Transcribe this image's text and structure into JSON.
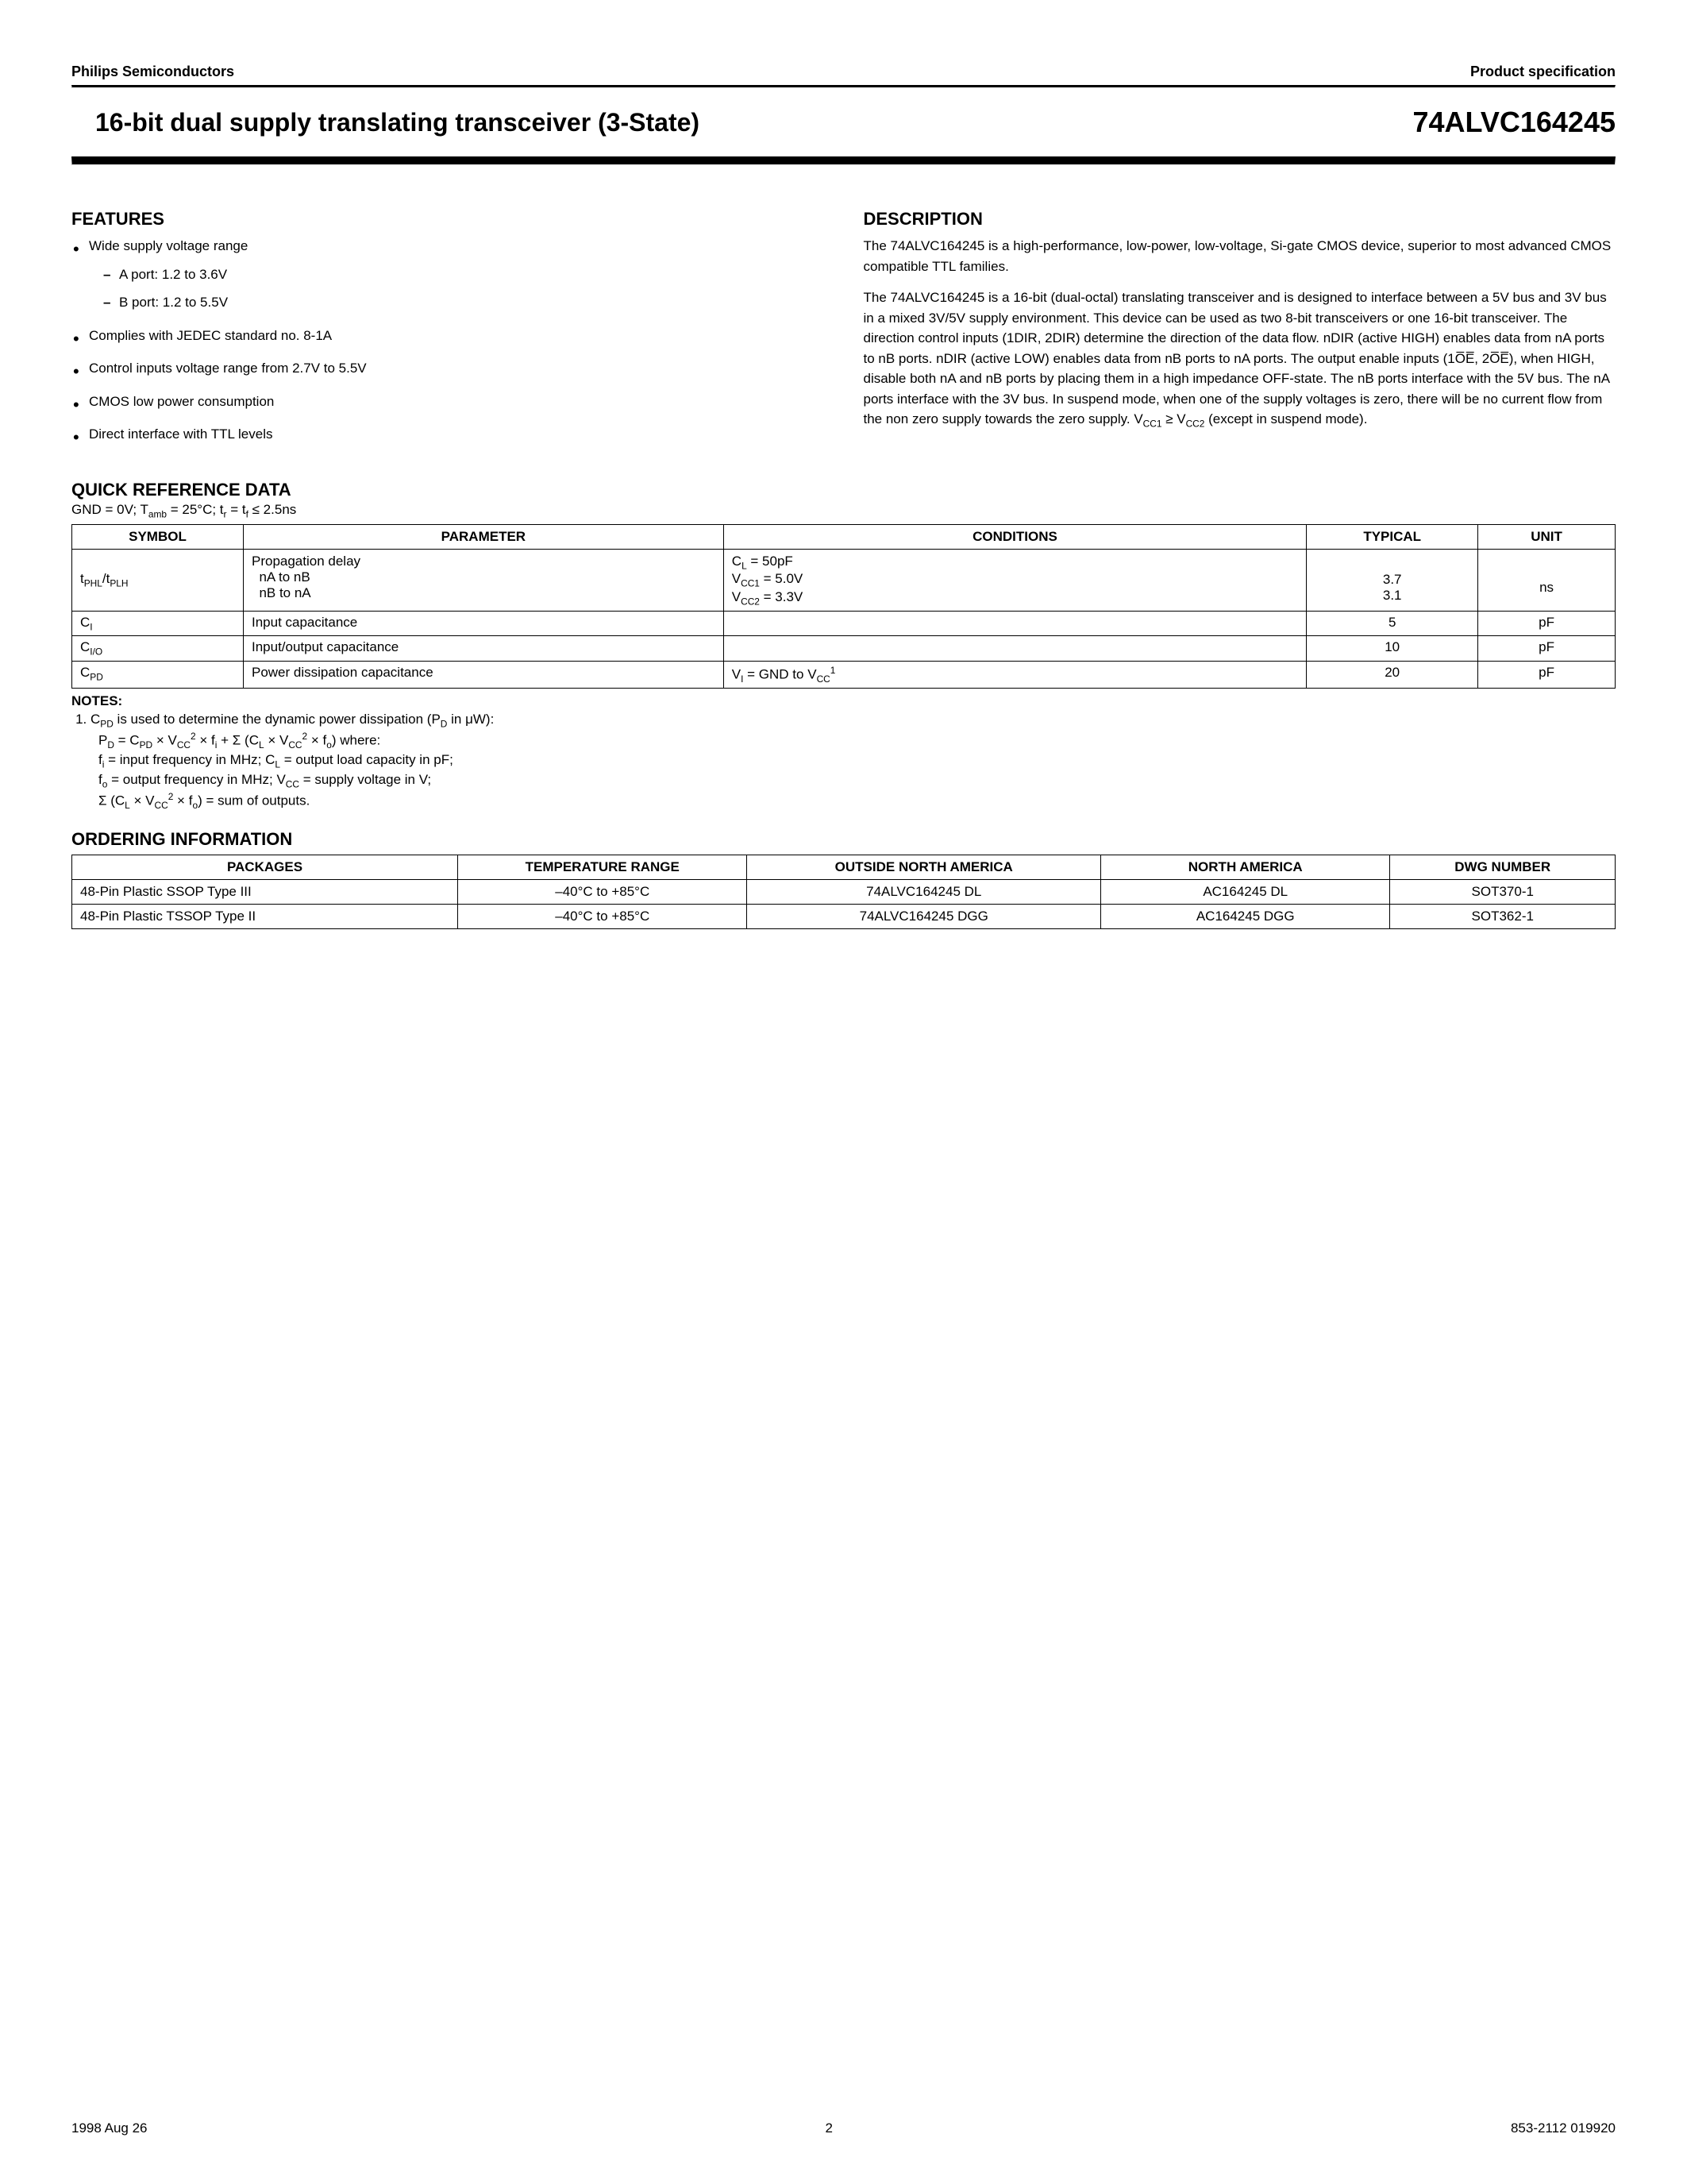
{
  "header": {
    "company": "Philips Semiconductors",
    "doc_type": "Product specification"
  },
  "title": {
    "left": "16-bit dual supply translating transceiver (3-State)",
    "right": "74ALVC164245"
  },
  "features": {
    "heading": "FEATURES",
    "items": [
      {
        "text": "Wide supply voltage range",
        "subs": [
          "A port: 1.2  to  3.6V",
          "B port: 1.2  to  5.5V"
        ]
      },
      {
        "text": "Complies with JEDEC standard no. 8-1A"
      },
      {
        "text": "Control inputs voltage range from 2.7V to 5.5V"
      },
      {
        "text": "CMOS low power consumption"
      },
      {
        "text": "Direct interface with TTL levels"
      }
    ]
  },
  "description": {
    "heading": "DESCRIPTION",
    "p1": "The 74ALVC164245 is a high-performance, low-power, low-voltage, Si-gate CMOS device, superior to most advanced CMOS compatible TTL families.",
    "p2_html": "The 74ALVC164245 is a 16-bit (dual-octal) translating transceiver and is designed to interface between a 5V bus and 3V bus in a mixed 3V/5V supply environment. This device can be used as two 8-bit transceivers or one 16-bit transceiver. The direction control inputs (1DIR, 2DIR) determine the direction of the data flow. nDIR (active HIGH) enables data from nA ports to nB ports. nDIR (active LOW) enables data from nB ports to nA ports. The output enable inputs (1O̅E̅, 2O̅E̅),  when HIGH, disable both nA and nB ports by placing them in a high impedance OFF-state. The nB ports interface with the 5V bus. The nA ports interface with the 3V bus. In suspend mode, when one of the supply voltages is zero, there will be no current flow from the non zero supply towards the zero supply."
  },
  "qref": {
    "heading": "QUICK REFERENCE DATA",
    "columns": [
      "SYMBOL",
      "PARAMETER",
      "CONDITIONS",
      "TYPICAL",
      "UNIT"
    ],
    "row1": {
      "param1": "Propagation delay",
      "param2": "nA to nB",
      "param3": "nB to nA",
      "typ1": "3.7",
      "typ2": "3.1",
      "unit": "ns"
    },
    "row2": {
      "param": "Input capacitance",
      "typ": "5",
      "unit": "pF"
    },
    "row3": {
      "param": "Input/output capacitance",
      "typ": "10",
      "unit": "pF"
    },
    "row4": {
      "param": "Power dissipation capacitance",
      "typ": "20",
      "unit": "pF"
    }
  },
  "notes": {
    "heading": "NOTES:"
  },
  "ordering": {
    "heading": "ORDERING INFORMATION",
    "columns": [
      "PACKAGES",
      "TEMPERATURE RANGE",
      "OUTSIDE NORTH AMERICA",
      "NORTH AMERICA",
      "DWG NUMBER"
    ],
    "rows": [
      [
        "48-Pin Plastic SSOP Type III",
        "–40°C to +85°C",
        "74ALVC164245 DL",
        "AC164245 DL",
        "SOT370-1"
      ],
      [
        "48-Pin Plastic TSSOP Type II",
        "–40°C to +85°C",
        "74ALVC164245 DGG",
        "AC164245 DGG",
        "SOT362-1"
      ]
    ]
  },
  "footer": {
    "date": "1998 Aug 26",
    "page": "2",
    "doc": "853-2112 019920"
  }
}
